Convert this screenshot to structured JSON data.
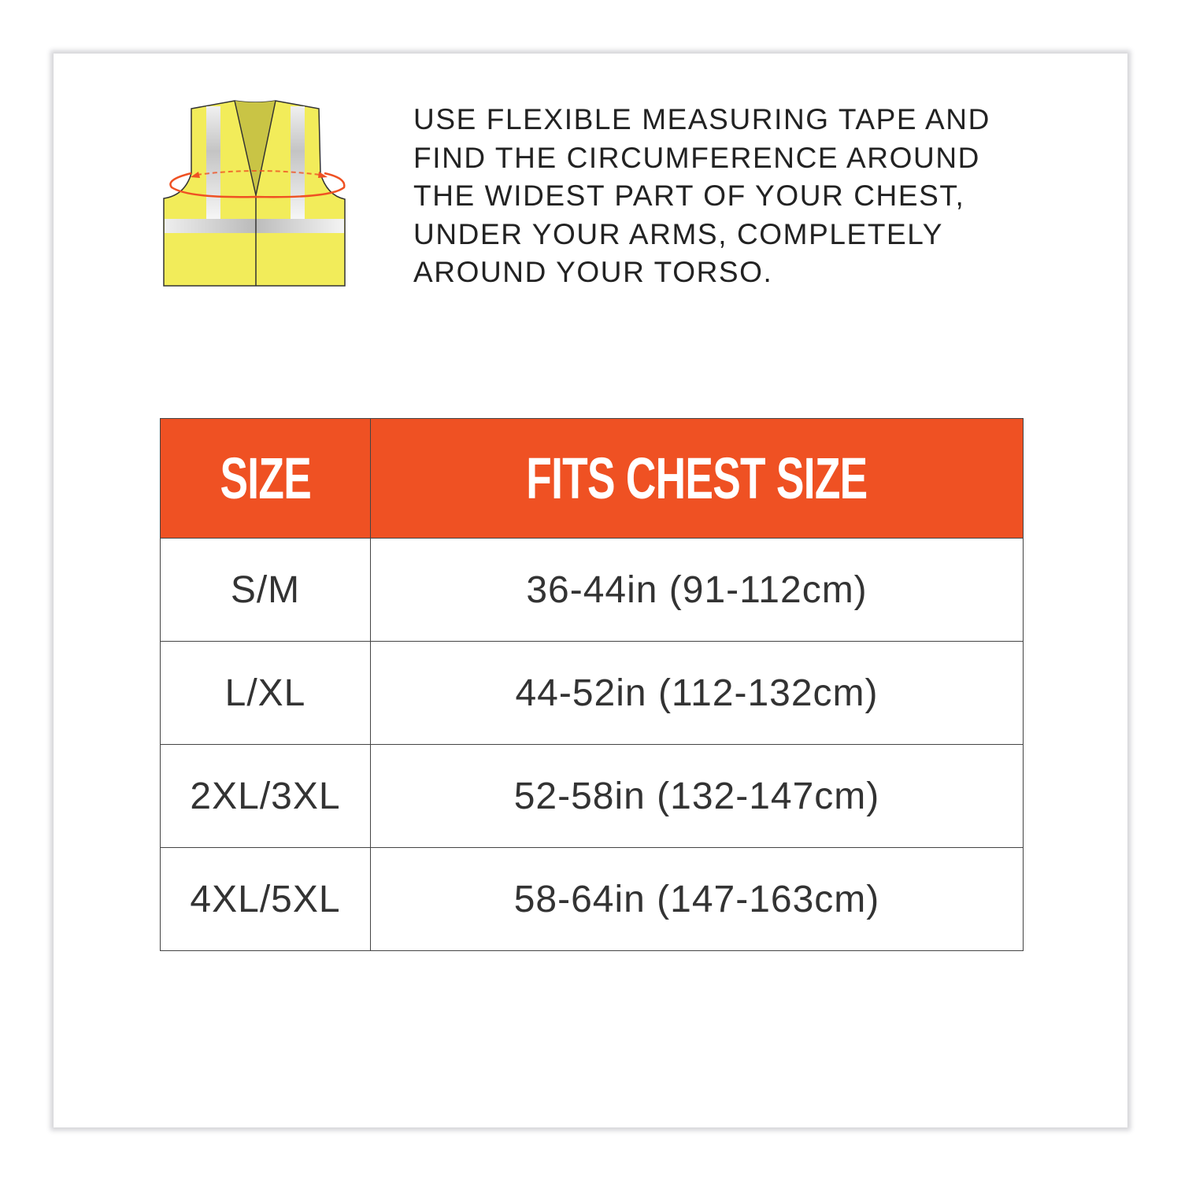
{
  "instructions": [
    "USE FLEXIBLE MEASURING TAPE AND",
    "FIND THE CIRCUMFERENCE AROUND",
    "THE WIDEST PART OF YOUR CHEST,",
    "UNDER YOUR ARMS, COMPLETELY",
    "AROUND YOUR TORSO."
  ],
  "illustration": "safety-vest-chest-measurement-icon",
  "colors": {
    "header": "#ef5123",
    "vest": "#f2ec5a",
    "tape": "#ef5123"
  },
  "table": {
    "headers": [
      "SIZE",
      "FITS CHEST SIZE"
    ],
    "rows": [
      [
        "S/M",
        "36-44in (91-112cm)"
      ],
      [
        "L/XL",
        "44-52in (112-132cm)"
      ],
      [
        "2XL/3XL",
        "52-58in (132-147cm)"
      ],
      [
        "4XL/5XL",
        "58-64in (147-163cm)"
      ]
    ]
  }
}
